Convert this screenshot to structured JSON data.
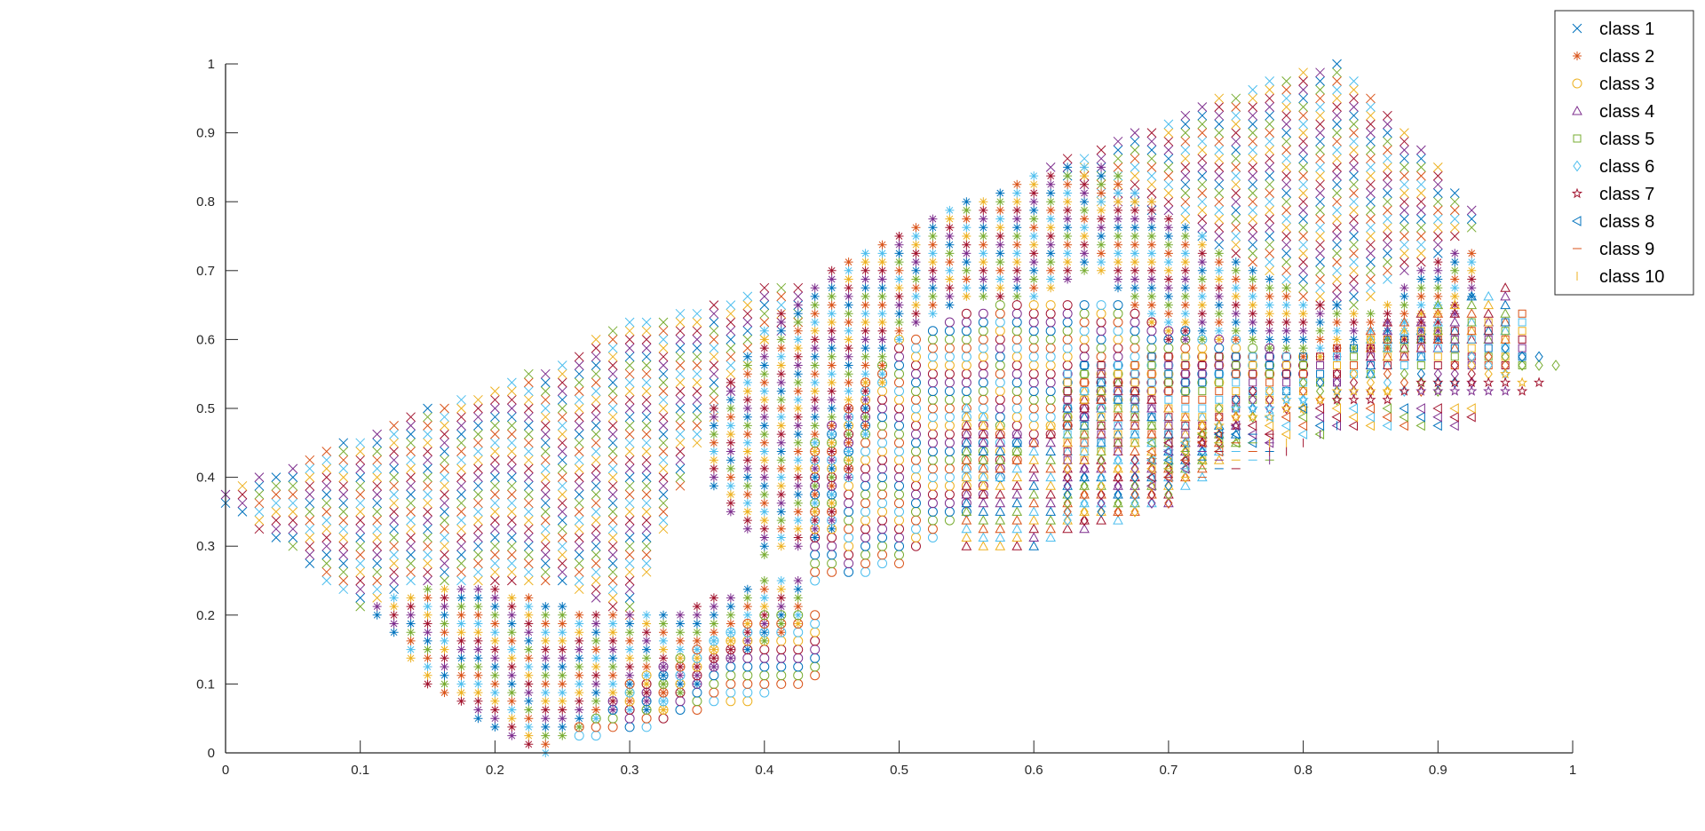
{
  "chart_data": {
    "type": "scatter",
    "title": "",
    "xlabel": "",
    "ylabel": "",
    "xlim": [
      0,
      1
    ],
    "ylim": [
      0,
      1
    ],
    "xticks": [
      "0",
      "0.1",
      "0.2",
      "0.3",
      "0.4",
      "0.5",
      "0.6",
      "0.7",
      "0.8",
      "0.9",
      "1"
    ],
    "yticks": [
      "0",
      "0.1",
      "0.2",
      "0.3",
      "0.4",
      "0.5",
      "0.6",
      "0.7",
      "0.8",
      "0.9",
      "1"
    ],
    "grid": false,
    "box": false,
    "legend_location": "top-right",
    "grid_step": 0.0125,
    "point_colors": [
      "#0072BD",
      "#D95319",
      "#EDB120",
      "#7E2F8E",
      "#77AC30",
      "#4DBEEE",
      "#A2142F"
    ],
    "series": [
      {
        "name": "class 1",
        "marker": "x",
        "legend_color": "#0072BD",
        "column_ranges": [
          [
            [
              0,
              0.36,
              0.38
            ],
            [
              0.05,
              0.29,
              0.42
            ],
            [
              0.1,
              0.21,
              0.46
            ],
            [
              0.15,
              0.25,
              0.5
            ],
            [
              0.2,
              0.25,
              0.53
            ],
            [
              0.25,
              0.24,
              0.57
            ],
            [
              0.3,
              0.2,
              0.63
            ],
            [
              0.35,
              0.45,
              0.64
            ],
            [
              0.4,
              0.6,
              0.68
            ],
            [
              0.425,
              0.62,
              0.68
            ]
          ],
          [
            [
              0.6125,
              0.84,
              0.86
            ],
            [
              0.65,
              0.8,
              0.88
            ],
            [
              0.7,
              0.78,
              0.92
            ],
            [
              0.75,
              0.72,
              0.96
            ],
            [
              0.8,
              0.66,
              0.99
            ],
            [
              0.825,
              0.64,
              1.0
            ],
            [
              0.85,
              0.66,
              0.96
            ],
            [
              0.875,
              0.7,
              0.9
            ],
            [
              0.9,
              0.72,
              0.85
            ],
            [
              0.925,
              0.76,
              0.79
            ]
          ]
        ]
      },
      {
        "name": "class 2",
        "marker": "asterisk",
        "legend_color": "#D95319",
        "column_ranges": [
          [
            [
              0.1125,
              0.2,
              0.22
            ],
            [
              0.15,
              0.1,
              0.24
            ],
            [
              0.2,
              0.03,
              0.24
            ],
            [
              0.2375,
              0.0,
              0.22
            ],
            [
              0.275,
              0.05,
              0.2
            ],
            [
              0.325,
              0.06,
              0.2
            ],
            [
              0.35,
              0.1,
              0.22
            ],
            [
              0.4,
              0.16,
              0.25
            ],
            [
              0.425,
              0.18,
              0.25
            ]
          ],
          [
            [
              0.3625,
              0.38,
              0.5
            ],
            [
              0.4,
              0.28,
              0.62
            ],
            [
              0.45,
              0.32,
              0.7
            ],
            [
              0.5,
              0.6,
              0.76
            ],
            [
              0.55,
              0.66,
              0.8
            ],
            [
              0.6,
              0.66,
              0.84
            ],
            [
              0.65,
              0.7,
              0.86
            ],
            [
              0.7,
              0.6,
              0.78
            ],
            [
              0.75,
              0.6,
              0.72
            ],
            [
              0.8,
              0.57,
              0.66
            ],
            [
              0.85,
              0.58,
              0.64
            ],
            [
              0.9,
              0.6,
              0.72
            ],
            [
              0.925,
              0.66,
              0.73
            ]
          ]
        ]
      },
      {
        "name": "class 3",
        "marker": "o",
        "legend_color": "#EDB120",
        "column_ranges": [
          [
            [
              0.2625,
              0.02,
              0.04
            ],
            [
              0.3,
              0.03,
              0.1
            ],
            [
              0.35,
              0.06,
              0.15
            ],
            [
              0.4,
              0.08,
              0.2
            ],
            [
              0.4375,
              0.11,
              0.2
            ]
          ],
          [
            [
              0.4375,
              0.25,
              0.45
            ],
            [
              0.5,
              0.27,
              0.6
            ],
            [
              0.55,
              0.35,
              0.64
            ],
            [
              0.6,
              0.45,
              0.66
            ],
            [
              0.65,
              0.5,
              0.66
            ],
            [
              0.7,
              0.52,
              0.62
            ],
            [
              0.75,
              0.54,
              0.6
            ],
            [
              0.8,
              0.55,
              0.58
            ]
          ]
        ]
      },
      {
        "name": "class 4",
        "marker": "triangle-up",
        "legend_color": "#7E2F8E",
        "column_ranges": [
          [
            [
              0.55,
              0.3,
              0.5
            ],
            [
              0.6,
              0.3,
              0.45
            ],
            [
              0.65,
              0.33,
              0.55
            ],
            [
              0.7,
              0.36,
              0.5
            ],
            [
              0.75,
              0.44,
              0.48
            ]
          ],
          [
            [
              0.85,
              0.55,
              0.62
            ],
            [
              0.9,
              0.58,
              0.65
            ],
            [
              0.95,
              0.6,
              0.68
            ]
          ]
        ]
      },
      {
        "name": "class 5",
        "marker": "square",
        "legend_color": "#77AC30",
        "column_ranges": [
          [
            [
              0.625,
              0.42,
              0.56
            ],
            [
              0.7,
              0.45,
              0.58
            ],
            [
              0.75,
              0.5,
              0.58
            ],
            [
              0.8,
              0.52,
              0.58
            ],
            [
              0.85,
              0.55,
              0.6
            ],
            [
              0.9,
              0.56,
              0.62
            ],
            [
              0.9625,
              0.56,
              0.64
            ]
          ]
        ]
      },
      {
        "name": "class 6",
        "marker": "diamond",
        "legend_color": "#4DBEEE",
        "column_ranges": [
          [
            [
              0.625,
              0.33,
              0.42
            ],
            [
              0.7,
              0.36,
              0.44
            ],
            [
              0.75,
              0.48,
              0.52
            ],
            [
              0.8,
              0.5,
              0.54
            ],
            [
              0.85,
              0.52,
              0.56
            ],
            [
              0.9,
              0.52,
              0.56
            ],
            [
              0.95,
              0.55,
              0.59
            ],
            [
              0.9875,
              0.56,
              0.57
            ]
          ]
        ]
      },
      {
        "name": "class 7",
        "marker": "pentagram",
        "legend_color": "#A2142F",
        "column_ranges": [
          [
            [
              0.6875,
              0.42,
              0.43
            ],
            [
              0.75,
              0.47,
              0.5
            ],
            [
              0.8,
              0.5,
              0.52
            ],
            [
              0.85,
              0.51,
              0.53
            ],
            [
              0.9,
              0.52,
              0.54
            ],
            [
              0.95,
              0.52,
              0.55
            ],
            [
              0.975,
              0.53,
              0.54
            ]
          ]
        ]
      },
      {
        "name": "class 8",
        "marker": "triangle-left",
        "legend_color": "#0072BD",
        "column_ranges": [
          [
            [
              0.6875,
              0.38,
              0.45
            ],
            [
              0.75,
              0.44,
              0.48
            ],
            [
              0.8,
              0.46,
              0.5
            ],
            [
              0.85,
              0.47,
              0.5
            ],
            [
              0.9,
              0.47,
              0.5
            ],
            [
              0.925,
              0.48,
              0.5
            ]
          ]
        ]
      },
      {
        "name": "class 9",
        "marker": "horizontal-line",
        "legend_color": "#D95319",
        "column_ranges": [
          [
            [
              0.7,
              0.39,
              0.43
            ],
            [
              0.75,
              0.41,
              0.46
            ],
            [
              0.775,
              0.42,
              0.47
            ]
          ]
        ]
      },
      {
        "name": "class 10",
        "marker": "vertical-line",
        "legend_color": "#EDB120",
        "column_ranges": [
          [
            [
              0.775,
              0.42,
              0.45
            ],
            [
              0.8,
              0.44,
              0.46
            ],
            [
              0.825,
              0.47,
              0.48
            ]
          ]
        ]
      }
    ]
  }
}
